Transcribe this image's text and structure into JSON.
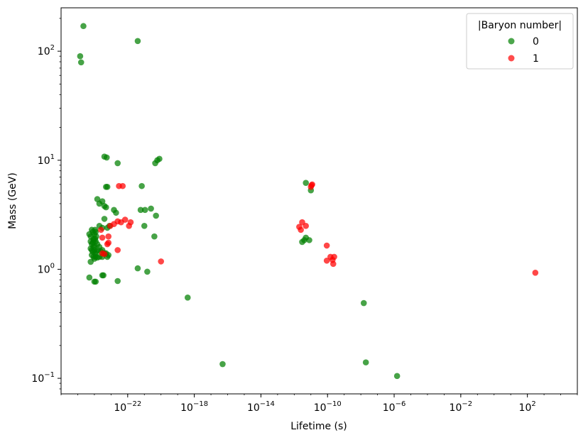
{
  "chart_data": {
    "type": "scatter",
    "xlabel": "Lifetime (s)",
    "ylabel": "Mass (GeV)",
    "x_scale": "log",
    "y_scale": "log",
    "xlim": [
      1e-26,
      100000.0
    ],
    "ylim": [
      0.072,
      250
    ],
    "x_ticks": [
      {
        "value": 1e-22,
        "base": "10",
        "exp": "−22"
      },
      {
        "value": 1e-18,
        "base": "10",
        "exp": "−18"
      },
      {
        "value": 1e-14,
        "base": "10",
        "exp": "−14"
      },
      {
        "value": 1e-10,
        "base": "10",
        "exp": "−10"
      },
      {
        "value": 1e-06,
        "base": "10",
        "exp": "−6"
      },
      {
        "value": 0.01,
        "base": "10",
        "exp": "−2"
      },
      {
        "value": 100.0,
        "base": "10",
        "exp": "2"
      }
    ],
    "y_ticks": [
      {
        "value": 0.1,
        "base": "10",
        "exp": "−1"
      },
      {
        "value": 1,
        "base": "10",
        "exp": "0"
      },
      {
        "value": 10,
        "base": "10",
        "exp": "1"
      },
      {
        "value": 100,
        "base": "10",
        "exp": "2"
      }
    ],
    "grid": false,
    "legend": {
      "title": "|Baryon number|",
      "placement": "top-right"
    },
    "series": [
      {
        "name": "0",
        "color": "#008000",
        "points": [
          [
            2.2e-25,
            170
          ],
          [
            1.4e-25,
            90
          ],
          [
            1.6e-25,
            79
          ],
          [
            4e-22,
            124
          ],
          [
            4e-24,
            10.8
          ],
          [
            5.5e-24,
            10.6
          ],
          [
            2.5e-23,
            9.4
          ],
          [
            4.5e-21,
            9.4
          ],
          [
            6e-21,
            10
          ],
          [
            8e-21,
            10.3
          ],
          [
            5e-24,
            5.7
          ],
          [
            6e-24,
            5.7
          ],
          [
            7e-22,
            5.8
          ],
          [
            1.5e-24,
            4.4
          ],
          [
            2e-24,
            4.0
          ],
          [
            3e-24,
            4.2
          ],
          [
            4e-24,
            3.8
          ],
          [
            5e-24,
            3.7
          ],
          [
            1.5e-23,
            3.5
          ],
          [
            2e-23,
            3.3
          ],
          [
            6e-22,
            3.5
          ],
          [
            1.1e-21,
            3.5
          ],
          [
            2.5e-21,
            3.6
          ],
          [
            5e-21,
            3.1
          ],
          [
            4e-24,
            2.9
          ],
          [
            3e-24,
            2.4
          ],
          [
            2e-24,
            2.5
          ],
          [
            6e-24,
            2.4
          ],
          [
            8e-24,
            2.5
          ],
          [
            1e-21,
            2.5
          ],
          [
            5e-25,
            2.1
          ],
          [
            6e-25,
            2.0
          ],
          [
            7e-25,
            2.3
          ],
          [
            8e-25,
            2.2
          ],
          [
            9e-25,
            1.9
          ],
          [
            1e-24,
            2.1
          ],
          [
            1.1e-24,
            2.3
          ],
          [
            1.2e-24,
            2.2
          ],
          [
            1.3e-24,
            2.0
          ],
          [
            6e-25,
            1.8
          ],
          [
            7e-25,
            1.7
          ],
          [
            8e-25,
            1.75
          ],
          [
            9e-25,
            1.85
          ],
          [
            1e-24,
            1.65
          ],
          [
            1.1e-24,
            1.9
          ],
          [
            1.2e-24,
            1.8
          ],
          [
            1.5e-24,
            1.7
          ],
          [
            6e-25,
            1.55
          ],
          [
            7e-25,
            1.5
          ],
          [
            8e-25,
            1.45
          ],
          [
            9e-25,
            1.6
          ],
          [
            1e-24,
            1.5
          ],
          [
            1.1e-24,
            1.4
          ],
          [
            1.3e-24,
            1.45
          ],
          [
            1.6e-24,
            1.5
          ],
          [
            2e-24,
            1.6
          ],
          [
            2.5e-24,
            1.45
          ],
          [
            3e-24,
            1.5
          ],
          [
            4e-24,
            1.4
          ],
          [
            7e-25,
            1.35
          ],
          [
            9e-25,
            1.3
          ],
          [
            1e-24,
            1.25
          ],
          [
            1.2e-24,
            1.3
          ],
          [
            1.5e-24,
            1.28
          ],
          [
            2e-24,
            1.3
          ],
          [
            3e-24,
            1.3
          ],
          [
            6e-25,
            1.17
          ],
          [
            6e-24,
            1.3
          ],
          [
            5e-24,
            1.4
          ],
          [
            7e-24,
            1.35
          ],
          [
            4e-22,
            1.02
          ],
          [
            4e-21,
            2.0
          ],
          [
            1.5e-21,
            0.95
          ],
          [
            5e-25,
            0.84
          ],
          [
            3e-24,
            0.88
          ],
          [
            3.5e-24,
            0.88
          ],
          [
            1e-24,
            0.77
          ],
          [
            1.2e-24,
            0.77
          ],
          [
            2.5e-23,
            0.78
          ],
          [
            4e-19,
            0.55
          ],
          [
            5e-17,
            0.135
          ],
          [
            3e-12,
            1.78
          ],
          [
            4e-12,
            1.85
          ],
          [
            5e-12,
            1.95
          ],
          [
            8e-12,
            1.85
          ],
          [
            5e-12,
            6.2
          ],
          [
            1e-11,
            5.3
          ],
          [
            1.5e-08,
            0.49
          ],
          [
            2e-08,
            0.14
          ],
          [
            1.5e-06,
            0.105
          ]
        ]
      },
      {
        "name": "1",
        "color": "#ff0000",
        "points": [
          [
            3e-23,
            5.8
          ],
          [
            5e-23,
            5.8
          ],
          [
            1.5e-23,
            2.6
          ],
          [
            2.5e-23,
            2.75
          ],
          [
            4e-23,
            2.7
          ],
          [
            7e-23,
            2.85
          ],
          [
            1.2e-22,
            2.5
          ],
          [
            1.5e-22,
            2.7
          ],
          [
            9e-24,
            2.5
          ],
          [
            2.5e-24,
            2.3
          ],
          [
            3e-24,
            1.95
          ],
          [
            7e-24,
            2.0
          ],
          [
            6e-24,
            1.7
          ],
          [
            7e-24,
            1.75
          ],
          [
            2.5e-23,
            1.5
          ],
          [
            3e-24,
            1.4
          ],
          [
            4e-24,
            1.38
          ],
          [
            1e-20,
            1.18
          ],
          [
            2e-12,
            2.45
          ],
          [
            2.5e-12,
            2.3
          ],
          [
            3e-12,
            2.7
          ],
          [
            5e-12,
            2.5
          ],
          [
            1e-11,
            5.7
          ],
          [
            1.1e-11,
            5.9
          ],
          [
            1.2e-11,
            6.0
          ],
          [
            9e-11,
            1.65
          ],
          [
            9e-11,
            1.2
          ],
          [
            1.5e-10,
            1.3
          ],
          [
            2e-10,
            1.22
          ],
          [
            2.5e-10,
            1.3
          ],
          [
            2.2e-10,
            1.12
          ],
          [
            300.0,
            0.93
          ]
        ]
      }
    ]
  }
}
